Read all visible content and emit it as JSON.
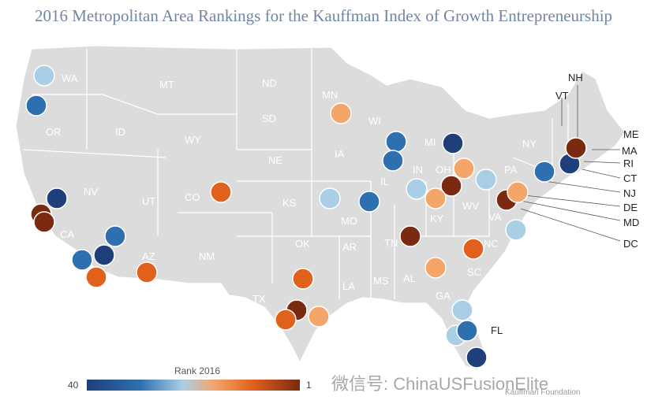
{
  "title": "2016 Metropolitan Area Rankings for the Kauffman Index of Growth Entrepreneurship",
  "states": [
    {
      "abbr": "WA"
    },
    {
      "abbr": "OR"
    },
    {
      "abbr": "CA"
    },
    {
      "abbr": "NV"
    },
    {
      "abbr": "ID"
    },
    {
      "abbr": "MT"
    },
    {
      "abbr": "WY"
    },
    {
      "abbr": "UT"
    },
    {
      "abbr": "AZ"
    },
    {
      "abbr": "CO"
    },
    {
      "abbr": "NM"
    },
    {
      "abbr": "ND"
    },
    {
      "abbr": "SD"
    },
    {
      "abbr": "NE"
    },
    {
      "abbr": "KS"
    },
    {
      "abbr": "OK"
    },
    {
      "abbr": "TX"
    },
    {
      "abbr": "MN"
    },
    {
      "abbr": "IA"
    },
    {
      "abbr": "MO"
    },
    {
      "abbr": "AR"
    },
    {
      "abbr": "LA"
    },
    {
      "abbr": "WI"
    },
    {
      "abbr": "IL"
    },
    {
      "abbr": "MS"
    },
    {
      "abbr": "AL"
    },
    {
      "abbr": "TN"
    },
    {
      "abbr": "KY"
    },
    {
      "abbr": "IN"
    },
    {
      "abbr": "MI"
    },
    {
      "abbr": "OH"
    },
    {
      "abbr": "GA"
    },
    {
      "abbr": "FL"
    },
    {
      "abbr": "SC"
    },
    {
      "abbr": "NC"
    },
    {
      "abbr": "VA"
    },
    {
      "abbr": "WV"
    },
    {
      "abbr": "PA"
    },
    {
      "abbr": "NY"
    },
    {
      "abbr": "VT"
    },
    {
      "abbr": "NH"
    },
    {
      "abbr": "ME"
    },
    {
      "abbr": "MA"
    },
    {
      "abbr": "RI"
    },
    {
      "abbr": "CT"
    },
    {
      "abbr": "NJ"
    },
    {
      "abbr": "DE"
    },
    {
      "abbr": "MD"
    },
    {
      "abbr": "DC"
    }
  ],
  "legend": {
    "title": "Rank 2016",
    "min_label": "40",
    "max_label": "1",
    "colors": [
      "#1f3f7a",
      "#2e6fb0",
      "#a9cfe6",
      "#f3a56a",
      "#e0611c",
      "#7a2a10"
    ]
  },
  "watermark": "微信号: ChinaUSFusionElite",
  "credit": "Kauffman Foundation"
}
